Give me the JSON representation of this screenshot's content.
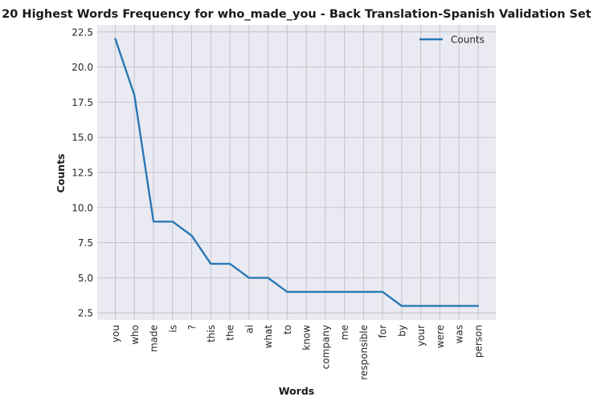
{
  "chart_data": {
    "type": "line",
    "title": "20 Highest Words Frequency for who_made_you - Back Translation-Spanish Validation Set",
    "xlabel": "Words",
    "ylabel": "Counts",
    "categories": [
      "you",
      "who",
      "made",
      "is",
      "?",
      "this",
      "the",
      "ai",
      "what",
      "to",
      "know",
      "company",
      "me",
      "responsible",
      "for",
      "by",
      "your",
      "were",
      "was",
      "person"
    ],
    "series": [
      {
        "name": "Counts",
        "values": [
          22,
          18,
          9,
          9,
          8,
          6,
          6,
          5,
          5,
          4,
          4,
          4,
          4,
          4,
          4,
          3,
          3,
          3,
          3,
          3
        ]
      }
    ],
    "yticks": [
      "2.5",
      "5.0",
      "7.5",
      "10.0",
      "12.5",
      "15.0",
      "17.5",
      "20.0",
      "22.5"
    ],
    "ylim": [
      2.0,
      23.0
    ],
    "grid": true,
    "legend_position": "top-right",
    "colors": {
      "line": "#2878b5",
      "plot_background": "#eaeaf2",
      "grid": "#c0c0c8"
    }
  }
}
